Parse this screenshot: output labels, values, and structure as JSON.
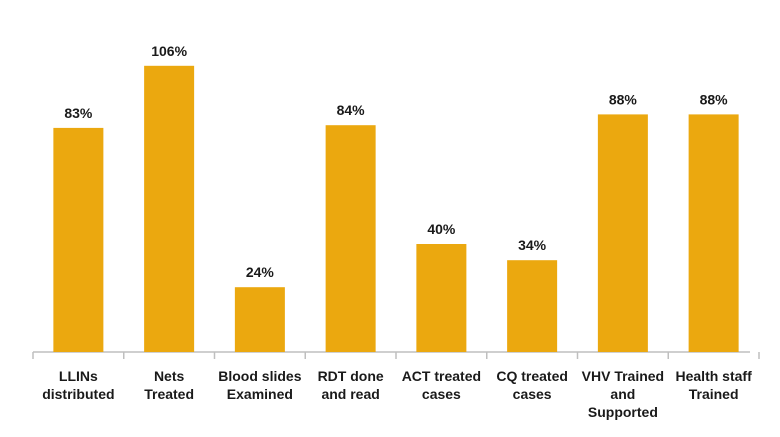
{
  "chart_data": {
    "type": "bar",
    "categories": [
      [
        "LLINs",
        "distributed"
      ],
      [
        "Nets",
        "Treated"
      ],
      [
        "Blood slides",
        "Examined"
      ],
      [
        "RDT done",
        "and read"
      ],
      [
        "ACT treated",
        "cases"
      ],
      [
        "CQ treated",
        "cases"
      ],
      [
        "VHV Trained",
        "and",
        "Supported"
      ],
      [
        "Health staff",
        "Trained"
      ]
    ],
    "values": [
      83,
      106,
      24,
      84,
      40,
      34,
      88,
      88
    ],
    "data_labels": [
      "83%",
      "106%",
      "24%",
      "84%",
      "40%",
      "34%",
      "88%",
      "88%"
    ],
    "ylim": [
      0,
      110
    ],
    "bar_color": "#EBA80F",
    "grid": false
  }
}
